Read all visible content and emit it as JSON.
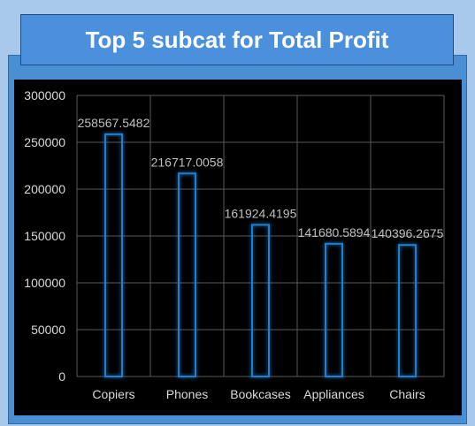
{
  "title": "Top 5 subcat for Total Profit",
  "colors": {
    "background": "#a9c9ec",
    "panel": "#4a8ed3",
    "bar_glow": "#1f7fd0",
    "chart_bg": "#000000"
  },
  "chart_data": {
    "type": "bar",
    "categories": [
      "Copiers",
      "Phones",
      "Bookcases",
      "Appliances",
      "Chairs"
    ],
    "values": [
      258567.5482,
      216717.0058,
      161924.4195,
      141680.5894,
      140396.2675
    ],
    "data_labels": [
      "258567.5482",
      "216717.0058",
      "161924.4195",
      "141680.5894",
      "140396.2675"
    ],
    "ylim": [
      0,
      300000
    ],
    "yticks": [
      "0",
      "50000",
      "100000",
      "150000",
      "200000",
      "250000",
      "300000"
    ],
    "grid": true
  }
}
